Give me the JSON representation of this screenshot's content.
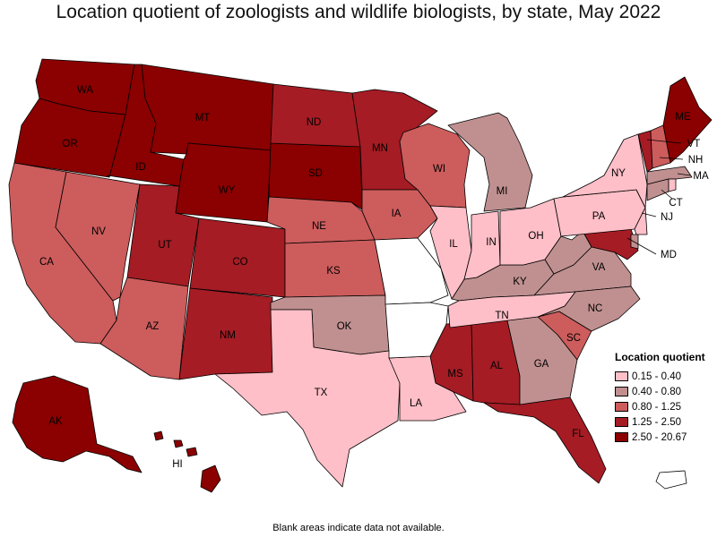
{
  "title": "Location quotient of zoologists and wildlife biologists, by state, May 2022",
  "note": "Blank areas indicate data not available.",
  "legend": {
    "title": "Location quotient",
    "bins": [
      {
        "label": "0.15 - 0.40",
        "color": "#ffbfc8"
      },
      {
        "label": "0.40 - 0.80",
        "color": "#c09090"
      },
      {
        "label": "0.80 - 1.25",
        "color": "#cd5c5c"
      },
      {
        "label": "1.25 - 2.50",
        "color": "#a51c24"
      },
      {
        "label": "2.50 - 20.67",
        "color": "#8b0000"
      }
    ]
  },
  "chart_data": {
    "type": "choropleth",
    "region": "United States",
    "legend_placement": "bottom-right",
    "states": [
      {
        "abbr": "WA",
        "bin": 4
      },
      {
        "abbr": "OR",
        "bin": 4
      },
      {
        "abbr": "ID",
        "bin": 4
      },
      {
        "abbr": "MT",
        "bin": 4
      },
      {
        "abbr": "WY",
        "bin": 4
      },
      {
        "abbr": "AK",
        "bin": 4
      },
      {
        "abbr": "ME",
        "bin": 4
      },
      {
        "abbr": "HI",
        "bin": 4
      },
      {
        "abbr": "SD",
        "bin": 4
      },
      {
        "abbr": "ND",
        "bin": 3
      },
      {
        "abbr": "MN",
        "bin": 3
      },
      {
        "abbr": "UT",
        "bin": 3
      },
      {
        "abbr": "CO",
        "bin": 3
      },
      {
        "abbr": "NM",
        "bin": 3
      },
      {
        "abbr": "MS",
        "bin": 3
      },
      {
        "abbr": "AL",
        "bin": 3
      },
      {
        "abbr": "FL",
        "bin": 3
      },
      {
        "abbr": "VT",
        "bin": 3
      },
      {
        "abbr": "MD",
        "bin": 3
      },
      {
        "abbr": "CA",
        "bin": 2
      },
      {
        "abbr": "NV",
        "bin": 2
      },
      {
        "abbr": "AZ",
        "bin": 2
      },
      {
        "abbr": "NE",
        "bin": 2
      },
      {
        "abbr": "KS",
        "bin": 2
      },
      {
        "abbr": "IA",
        "bin": 2
      },
      {
        "abbr": "WI",
        "bin": 2
      },
      {
        "abbr": "SC",
        "bin": 2
      },
      {
        "abbr": "NH",
        "bin": 2
      },
      {
        "abbr": "OK",
        "bin": 1
      },
      {
        "abbr": "MI",
        "bin": 1
      },
      {
        "abbr": "KY",
        "bin": 1
      },
      {
        "abbr": "VA",
        "bin": 1
      },
      {
        "abbr": "NC",
        "bin": 1
      },
      {
        "abbr": "GA",
        "bin": 1
      },
      {
        "abbr": "MA",
        "bin": 1
      },
      {
        "abbr": "CT",
        "bin": 1
      },
      {
        "abbr": "WV",
        "bin": 1
      },
      {
        "abbr": "DE",
        "bin": 1
      },
      {
        "abbr": "TX",
        "bin": 0
      },
      {
        "abbr": "LA",
        "bin": 0
      },
      {
        "abbr": "TN",
        "bin": 0
      },
      {
        "abbr": "IL",
        "bin": 0
      },
      {
        "abbr": "IN",
        "bin": 0
      },
      {
        "abbr": "OH",
        "bin": 0
      },
      {
        "abbr": "PA",
        "bin": 0
      },
      {
        "abbr": "NY",
        "bin": 0
      },
      {
        "abbr": "NJ",
        "bin": 0
      },
      {
        "abbr": "RI",
        "bin": 0
      },
      {
        "abbr": "MO",
        "bin": null
      },
      {
        "abbr": "AR",
        "bin": null
      },
      {
        "abbr": "PR",
        "bin": null
      }
    ]
  }
}
